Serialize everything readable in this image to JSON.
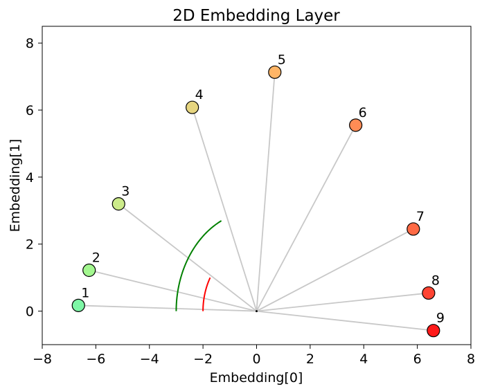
{
  "chart_data": {
    "type": "scatter",
    "title": "2D Embedding Layer",
    "xlabel": "Embedding[0]",
    "ylabel": "Embedding[1]",
    "xlim": [
      -8,
      8
    ],
    "ylim": [
      -1,
      8.5
    ],
    "xticks": [
      -8,
      -6,
      -4,
      -2,
      0,
      2,
      4,
      6,
      8
    ],
    "xtick_labels": [
      "−8",
      "−6",
      "−4",
      "−2",
      "0",
      "2",
      "4",
      "6",
      "8"
    ],
    "yticks": [
      0,
      2,
      4,
      6,
      8
    ],
    "ytick_labels": [
      "0",
      "2",
      "4",
      "6",
      "8"
    ],
    "grid": false,
    "origin": [
      0,
      0
    ],
    "points": [
      {
        "label": "1",
        "x": -6.65,
        "y": 0.17,
        "color": "#7ef7a6"
      },
      {
        "label": "2",
        "x": -6.25,
        "y": 1.22,
        "color": "#a3f78f"
      },
      {
        "label": "3",
        "x": -5.15,
        "y": 3.2,
        "color": "#cceb8a"
      },
      {
        "label": "4",
        "x": -2.4,
        "y": 6.08,
        "color": "#e6d580"
      },
      {
        "label": "5",
        "x": 0.68,
        "y": 7.13,
        "color": "#ffb566"
      },
      {
        "label": "6",
        "x": 3.7,
        "y": 5.55,
        "color": "#ff8c55"
      },
      {
        "label": "7",
        "x": 5.85,
        "y": 2.45,
        "color": "#ff6a45"
      },
      {
        "label": "8",
        "x": 6.42,
        "y": 0.54,
        "color": "#ff4433"
      },
      {
        "label": "9",
        "x": 6.6,
        "y": -0.58,
        "color": "#ff1a1a"
      }
    ],
    "arcs": [
      {
        "radius": 3.0,
        "theta_start_deg": 0,
        "theta_end_deg": 64,
        "color": "#008000"
      },
      {
        "radius": 2.0,
        "theta_start_deg": 0,
        "theta_end_deg": 30,
        "color": "#ff0000"
      }
    ],
    "ray_color": "#c8c8c8"
  }
}
